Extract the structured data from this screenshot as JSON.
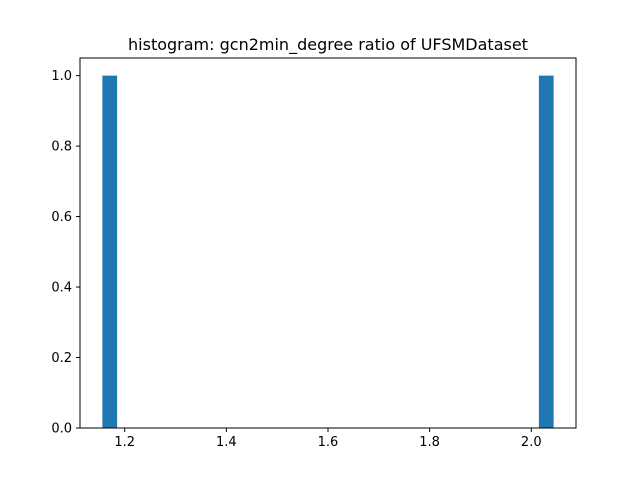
{
  "chart_data": {
    "type": "bar",
    "title": "histogram: gcn2min_degree ratio of UFSMDataset",
    "xlabel": "",
    "ylabel": "",
    "xlim": [
      1.112,
      2.088
    ],
    "ylim": [
      0.0,
      1.05
    ],
    "x_ticks": [
      1.2,
      1.4,
      1.6,
      1.8,
      2.0
    ],
    "x_tick_labels": [
      "1.2",
      "1.4",
      "1.6",
      "1.8",
      "2.0"
    ],
    "y_ticks": [
      0.0,
      0.2,
      0.4,
      0.6,
      0.8,
      1.0
    ],
    "y_tick_labels": [
      "0.0",
      "0.2",
      "0.4",
      "0.6",
      "0.8",
      "1.0"
    ],
    "bins": [
      {
        "x0": 1.156,
        "x1": 1.185,
        "count": 1
      },
      {
        "x0": 2.015,
        "x1": 2.044,
        "count": 1
      }
    ],
    "grid": false,
    "bar_color": "#1f77b4"
  }
}
